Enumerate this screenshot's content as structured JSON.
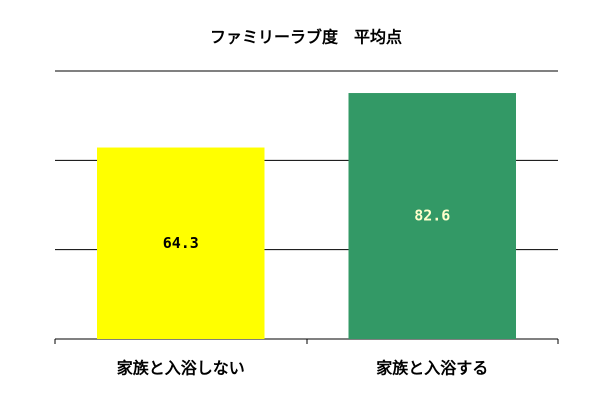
{
  "chart_data": {
    "type": "bar",
    "title": "ファミリーラブ度　平均点",
    "categories": [
      "家族と入浴しない",
      "家族と入浴する"
    ],
    "values": [
      64.3,
      82.6
    ],
    "colors": [
      "#ffff00",
      "#339966"
    ],
    "label_colors": [
      "#000000",
      "#ffffcc"
    ],
    "ylim": [
      0,
      90
    ],
    "yticks": [
      30,
      60,
      90
    ],
    "grid": true
  }
}
